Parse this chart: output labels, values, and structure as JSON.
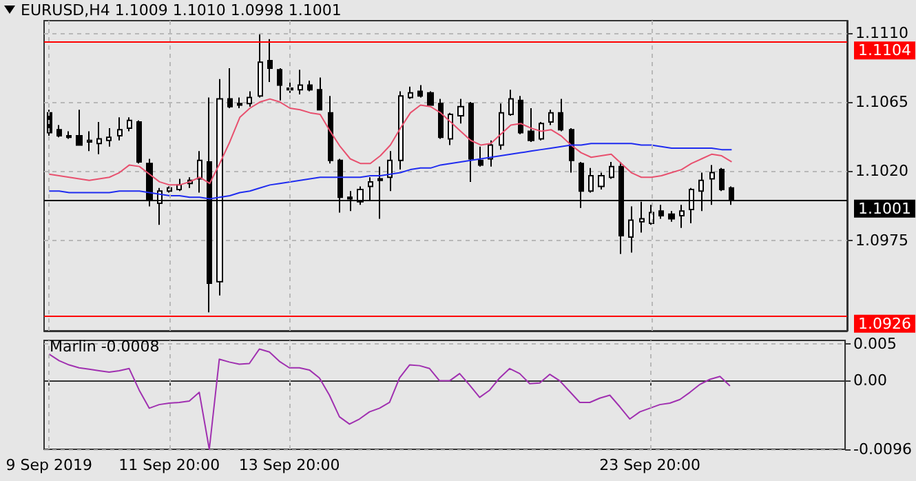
{
  "chart_data": [
    {
      "type": "candlestick",
      "title": "EURUSD,H4  1.1009 1.1010 1.0998 1.1001",
      "tick_labels": "y",
      "grid": true,
      "categories": [
        null,
        null,
        null,
        null,
        null,
        null,
        null,
        null,
        null,
        null,
        null,
        null,
        null,
        null,
        null,
        null,
        null,
        null,
        null,
        null,
        null,
        null,
        null,
        null,
        null,
        null,
        null,
        null,
        null,
        null,
        null,
        null,
        null,
        null,
        null,
        null,
        null,
        null,
        null,
        null,
        null,
        null,
        null,
        null,
        null,
        null,
        null,
        null,
        null,
        null,
        null,
        null,
        null,
        null,
        null,
        null,
        null,
        null,
        null,
        null,
        null,
        null,
        null,
        null,
        null,
        null,
        null,
        null,
        null,
        null,
        null,
        null,
        null,
        null,
        null,
        null,
        null,
        null,
        null,
        null
      ],
      "ohlc": [
        [
          1.1058,
          1.106,
          1.1043,
          1.1045
        ],
        [
          1.1047,
          1.105,
          1.1042,
          1.1043
        ],
        [
          1.1043,
          1.1046,
          1.1041,
          1.1042
        ],
        [
          1.1043,
          1.106,
          1.1037,
          1.1037
        ],
        [
          1.1039,
          1.1046,
          1.1033,
          1.104
        ],
        [
          1.1038,
          1.1052,
          1.1031,
          1.1041
        ],
        [
          1.104,
          1.1048,
          1.1036,
          1.1042
        ],
        [
          1.1043,
          1.1055,
          1.104,
          1.1047
        ],
        [
          1.1048,
          1.1055,
          1.1046,
          1.1053
        ],
        [
          1.1052,
          1.1053,
          1.1025,
          1.1026
        ],
        [
          1.1025,
          1.1028,
          1.0997,
          1.1001
        ],
        [
          1.0999,
          1.1009,
          1.0985,
          1.1007
        ],
        [
          1.1007,
          1.101,
          1.1006,
          1.1009
        ],
        [
          1.1008,
          1.1015,
          1.1007,
          1.1011
        ],
        [
          1.1012,
          1.1016,
          1.1009,
          1.1014
        ],
        [
          1.1015,
          1.1033,
          1.1006,
          1.1027
        ],
        [
          1.1026,
          1.1068,
          1.0928,
          1.0947
        ],
        [
          1.0948,
          1.108,
          1.0939,
          1.1067
        ],
        [
          1.1067,
          1.1087,
          1.1061,
          1.1062
        ],
        [
          1.1064,
          1.1068,
          1.1061,
          1.1063
        ],
        [
          1.1064,
          1.1072,
          1.1062,
          1.1068
        ],
        [
          1.1069,
          1.1109,
          1.1068,
          1.1091
        ],
        [
          1.1092,
          1.1106,
          1.1078,
          1.1087
        ],
        [
          1.1086,
          1.1087,
          1.1066,
          1.1076
        ],
        [
          1.1074,
          1.1079,
          1.1071,
          1.1073
        ],
        [
          1.1073,
          1.1086,
          1.107,
          1.1076
        ],
        [
          1.1076,
          1.1079,
          1.1072,
          1.1073
        ],
        [
          1.1073,
          1.1081,
          1.106,
          1.106
        ],
        [
          1.1058,
          1.1069,
          1.1025,
          1.1027
        ],
        [
          1.1027,
          1.1028,
          1.0993,
          1.1003
        ],
        [
          1.1003,
          1.1007,
          1.0994,
          1.1002
        ],
        [
          1.1,
          1.101,
          1.0998,
          1.1008
        ],
        [
          1.101,
          1.1016,
          1.1001,
          1.1013
        ],
        [
          1.1015,
          1.1023,
          1.0989,
          1.1014
        ],
        [
          1.1016,
          1.1033,
          1.1007,
          1.1027
        ],
        [
          1.1027,
          1.1072,
          1.1021,
          1.1069
        ],
        [
          1.1068,
          1.1075,
          1.1067,
          1.1071
        ],
        [
          1.1072,
          1.1076,
          1.1068,
          1.1069
        ],
        [
          1.1071,
          1.1072,
          1.1063,
          1.1063
        ],
        [
          1.1064,
          1.1067,
          1.1041,
          1.1042
        ],
        [
          1.1041,
          1.1058,
          1.1037,
          1.1057
        ],
        [
          1.1056,
          1.1067,
          1.1051,
          1.1062
        ],
        [
          1.1064,
          1.1065,
          1.1013,
          1.1028
        ],
        [
          1.1027,
          1.1036,
          1.1023,
          1.1024
        ],
        [
          1.1028,
          1.104,
          1.1023,
          1.1037
        ],
        [
          1.1037,
          1.1064,
          1.1034,
          1.1058
        ],
        [
          1.1057,
          1.1073,
          1.1056,
          1.1067
        ],
        [
          1.1066,
          1.1069,
          1.1044,
          1.1045
        ],
        [
          1.1046,
          1.1061,
          1.1039,
          1.104
        ],
        [
          1.1041,
          1.1052,
          1.104,
          1.1051
        ],
        [
          1.1052,
          1.106,
          1.105,
          1.1058
        ],
        [
          1.1058,
          1.1067,
          1.1046,
          1.1047
        ],
        [
          1.1047,
          1.1048,
          1.1019,
          1.1027
        ],
        [
          1.1025,
          1.1026,
          1.0996,
          1.1007
        ],
        [
          1.1007,
          1.1022,
          1.1006,
          1.1017
        ],
        [
          1.101,
          1.1019,
          1.1008,
          1.1017
        ],
        [
          1.1016,
          1.1026,
          1.1015,
          1.1023
        ],
        [
          1.1023,
          1.1026,
          1.0966,
          1.0978
        ],
        [
          1.0977,
          1.0997,
          1.0967,
          1.0988
        ],
        [
          1.0987,
          1.1,
          1.098,
          1.0989
        ],
        [
          1.0986,
          1.0998,
          1.0985,
          1.0993
        ],
        [
          1.0994,
          1.0998,
          1.0989,
          1.0991
        ],
        [
          1.0992,
          1.0994,
          1.0987,
          1.0989
        ],
        [
          1.0991,
          1.0998,
          1.0983,
          1.0994
        ],
        [
          1.0995,
          1.1009,
          1.0986,
          1.1008
        ],
        [
          1.1007,
          1.1019,
          1.0994,
          1.1014
        ],
        [
          1.1015,
          1.1024,
          1.0998,
          1.1019
        ],
        [
          1.1021,
          1.1022,
          1.1007,
          1.1008
        ],
        [
          1.1009,
          1.101,
          1.0998,
          1.1001
        ],
        null,
        null,
        null,
        null,
        null,
        null,
        null,
        null,
        null,
        null,
        null
      ],
      "series": [
        {
          "type": "line",
          "color": "#e8506e",
          "values": [
            1.1018,
            1.1017,
            1.1016,
            1.1015,
            1.1014,
            1.1015,
            1.1016,
            1.1019,
            1.1024,
            1.1023,
            1.1018,
            1.1013,
            1.1011,
            1.1011,
            1.1013,
            1.1016,
            1.1012,
            1.1025,
            1.1039,
            1.1055,
            1.1061,
            1.1065,
            1.1067,
            1.1065,
            1.1061,
            1.106,
            1.1058,
            1.1057,
            1.1046,
            1.1036,
            1.1028,
            1.1025,
            1.1025,
            1.103,
            1.1037,
            1.1048,
            1.1058,
            1.1063,
            1.1062,
            1.1058,
            1.1052,
            1.1046,
            1.104,
            1.1037,
            1.1038,
            1.1044,
            1.105,
            1.1051,
            1.1048,
            1.1046,
            1.1047,
            1.1043,
            1.1037,
            1.1032,
            1.1029,
            1.103,
            1.1031,
            1.1025,
            1.1019,
            1.1016,
            1.1016,
            1.1017,
            1.1019,
            1.1021,
            1.1025,
            1.1028,
            1.1031,
            1.103,
            1.1026,
            null,
            null,
            null,
            null,
            null,
            null,
            null,
            null,
            null,
            null,
            null
          ]
        },
        {
          "type": "line",
          "color": "#1f2cf0",
          "values": [
            1.1007,
            1.1007,
            1.1006,
            1.1006,
            1.1006,
            1.1006,
            1.1006,
            1.1007,
            1.1007,
            1.1007,
            1.1006,
            1.1005,
            1.1004,
            1.1004,
            1.1003,
            1.1003,
            1.1002,
            1.1003,
            1.1004,
            1.1006,
            1.1007,
            1.1009,
            1.1011,
            1.1012,
            1.1013,
            1.1014,
            1.1015,
            1.1016,
            1.1016,
            1.1016,
            1.1016,
            1.1016,
            1.1017,
            1.1017,
            1.1018,
            1.1019,
            1.1021,
            1.1022,
            1.1022,
            1.1024,
            1.1025,
            1.1026,
            1.1027,
            1.1028,
            1.1029,
            1.103,
            1.1031,
            1.1032,
            1.1033,
            1.1034,
            1.1035,
            1.1036,
            1.1037,
            1.1037,
            1.1038,
            1.1038,
            1.1038,
            1.1038,
            1.1038,
            1.1037,
            1.1037,
            1.1036,
            1.1035,
            1.1035,
            1.1035,
            1.1035,
            1.1035,
            1.1034,
            1.1034,
            null,
            null,
            null,
            null,
            null,
            null,
            null,
            null,
            null,
            null,
            null
          ]
        }
      ],
      "ylim": [
        1.0916,
        1.1118
      ],
      "yticks": [
        1.0975,
        {
          "value": 1.102,
          "label": "1.1020"
        },
        1.1065,
        {
          "value": 1.111,
          "label": "1.1110"
        }
      ],
      "ref_lines": [
        {
          "axis": "y",
          "value": 1.1104,
          "label": "1.1104",
          "color": "#ff0000"
        },
        {
          "axis": "y",
          "value": 1.0926,
          "label": "1.0926",
          "color": "#ff0000"
        },
        {
          "axis": "y",
          "value": 1.1001,
          "label": "1.1001",
          "color": "#000000"
        }
      ]
    },
    {
      "type": "line",
      "title": "Marlin -0.0008",
      "grid": true,
      "categories": [
        "9 Sep 2019",
        null,
        null,
        null,
        null,
        null,
        null,
        null,
        null,
        null,
        null,
        null,
        "11 Sep 20:00",
        null,
        null,
        null,
        null,
        null,
        null,
        null,
        null,
        null,
        null,
        null,
        "13 Sep 20:00",
        null,
        null,
        null,
        null,
        null,
        null,
        null,
        null,
        null,
        null,
        null,
        null,
        null,
        null,
        null,
        null,
        null,
        null,
        null,
        null,
        null,
        null,
        null,
        null,
        null,
        null,
        null,
        null,
        null,
        null,
        null,
        null,
        null,
        null,
        null,
        "23 Sep 20:00",
        null,
        null,
        null,
        null,
        null,
        null,
        null,
        null,
        null,
        null,
        null,
        null,
        null,
        null,
        null,
        null,
        null,
        null,
        null
      ],
      "series": [
        {
          "color": "#a030b0",
          "values": [
            0.0036,
            0.0027,
            0.0021,
            0.0017,
            0.0015,
            0.0013,
            0.0011,
            0.0013,
            0.0016,
            -0.0014,
            -0.0039,
            -0.0034,
            -0.0032,
            -0.0031,
            -0.0029,
            -0.0017,
            -0.0096,
            0.0029,
            0.0025,
            0.0022,
            0.0023,
            0.0043,
            0.0039,
            0.0026,
            0.0017,
            0.0017,
            0.0014,
            0.0003,
            -0.0021,
            -0.0051,
            -0.0061,
            -0.0054,
            -0.0044,
            -0.0039,
            -0.0031,
            0.0003,
            0.0021,
            0.002,
            0.0016,
            -0.0001,
            -0.0001,
            0.0009,
            -0.0007,
            -0.0024,
            -0.0014,
            0.0003,
            0.0016,
            0.0009,
            -0.0005,
            -0.0004,
            0.0008,
            -0.0001,
            -0.0016,
            -0.0031,
            -0.0031,
            -0.0025,
            -0.0021,
            -0.0037,
            -0.0054,
            -0.0044,
            -0.0039,
            -0.0034,
            -0.0032,
            -0.0027,
            -0.0017,
            -0.0006,
            0.0001,
            0.0005,
            -0.0008,
            null,
            null,
            null,
            null,
            null,
            null,
            null,
            null,
            null,
            null,
            null
          ]
        }
      ],
      "ylim": [
        -0.0096,
        0.0055
      ],
      "yticks": [
        -0.0096,
        {
          "value": 0,
          "label": "0.00"
        },
        0.005
      ]
    }
  ]
}
